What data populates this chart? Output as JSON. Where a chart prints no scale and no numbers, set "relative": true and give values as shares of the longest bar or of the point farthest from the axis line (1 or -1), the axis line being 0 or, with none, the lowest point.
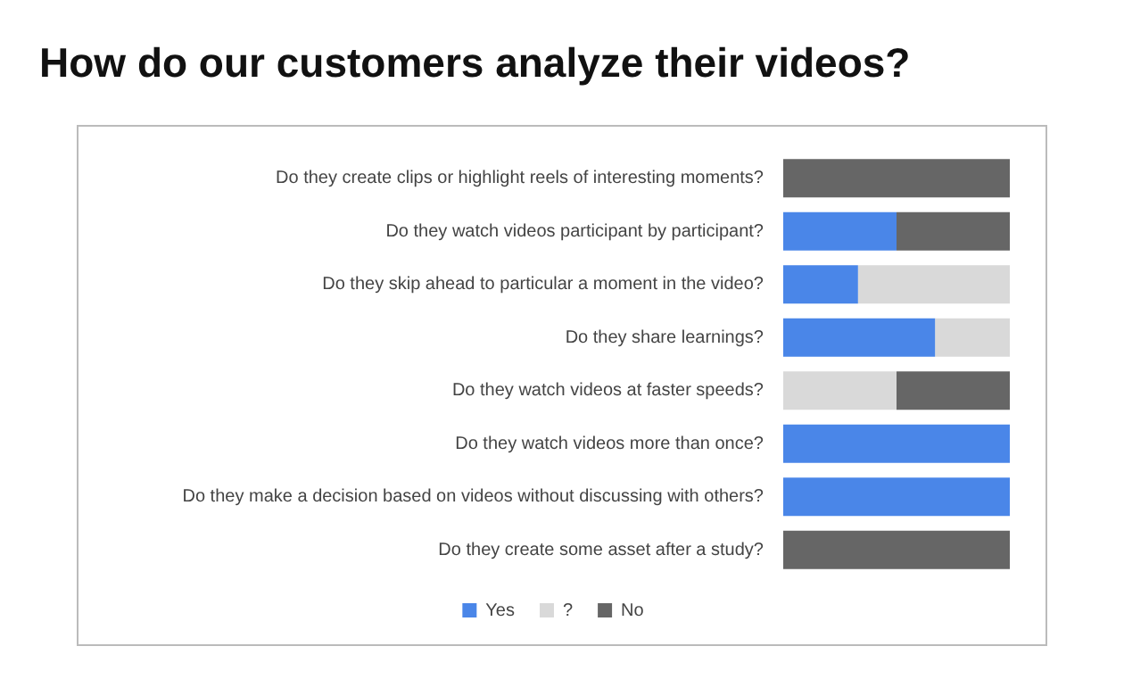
{
  "chart_data": {
    "type": "bar",
    "title": "How do our customers analyze their videos?",
    "orientation": "horizontal",
    "stacked": true,
    "relative": true,
    "legend": "bottom",
    "categories": [
      "Do they create clips or highlight reels of interesting moments?",
      "Do they watch videos participant by participant?",
      "Do they skip ahead to particular a moment in the video?",
      "Do they share learnings?",
      "Do they watch videos at faster speeds?",
      "Do they watch videos more than once?",
      "Do they make a decision based on videos without discussing with others?",
      "Do they create some asset after a study?"
    ],
    "series": [
      {
        "name": "Yes",
        "color": "#4a86e8",
        "values": [
          0,
          0.5,
          0.33,
          0.67,
          0,
          1,
          1,
          0
        ]
      },
      {
        "name": "?",
        "color": "#d9d9d9",
        "values": [
          0,
          0,
          0.67,
          0.33,
          0.5,
          0,
          0,
          0
        ]
      },
      {
        "name": "No",
        "color": "#666666",
        "values": [
          1,
          0.5,
          0,
          0,
          0.5,
          0,
          0,
          1
        ]
      }
    ]
  }
}
